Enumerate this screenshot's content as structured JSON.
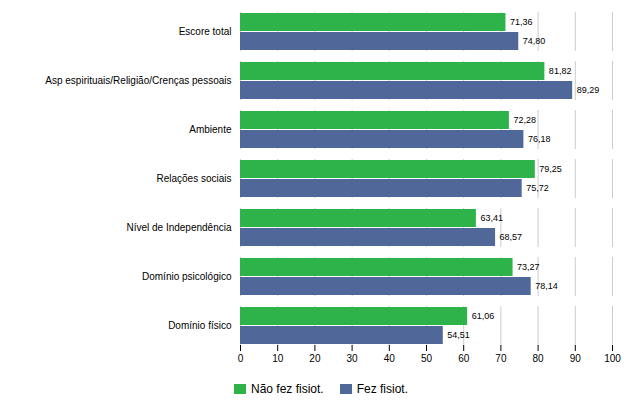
{
  "chart_data": {
    "type": "bar",
    "orientation": "horizontal",
    "categories": [
      "Domínio físico",
      "Domínio psicológico",
      "Nível de Independência",
      "Relações sociais",
      "Ambiente",
      "Asp espirituais/Religião/Crenças pessoais",
      "Escore total"
    ],
    "series": [
      {
        "name": "Não fez fisiot.",
        "color": "#2db34a",
        "values": [
          61.06,
          73.27,
          63.41,
          79.25,
          72.28,
          81.82,
          71.36
        ],
        "value_labels": [
          "61,06",
          "73,27",
          "63,41",
          "79,25",
          "72,28",
          "81,82",
          "71,36"
        ]
      },
      {
        "name": "Fez fisiot.",
        "color": "#4f6899",
        "values": [
          54.51,
          78.14,
          68.57,
          75.72,
          76.18,
          89.29,
          74.8
        ],
        "value_labels": [
          "54,51",
          "78,14",
          "68,57",
          "75,72",
          "76,18",
          "89,29",
          "74,80"
        ]
      }
    ],
    "xlim": [
      0,
      100
    ],
    "xticks": [
      0,
      10,
      20,
      30,
      40,
      50,
      60,
      70,
      80,
      90,
      100
    ],
    "grid": true,
    "data_labels": true,
    "legend": "bottom"
  }
}
